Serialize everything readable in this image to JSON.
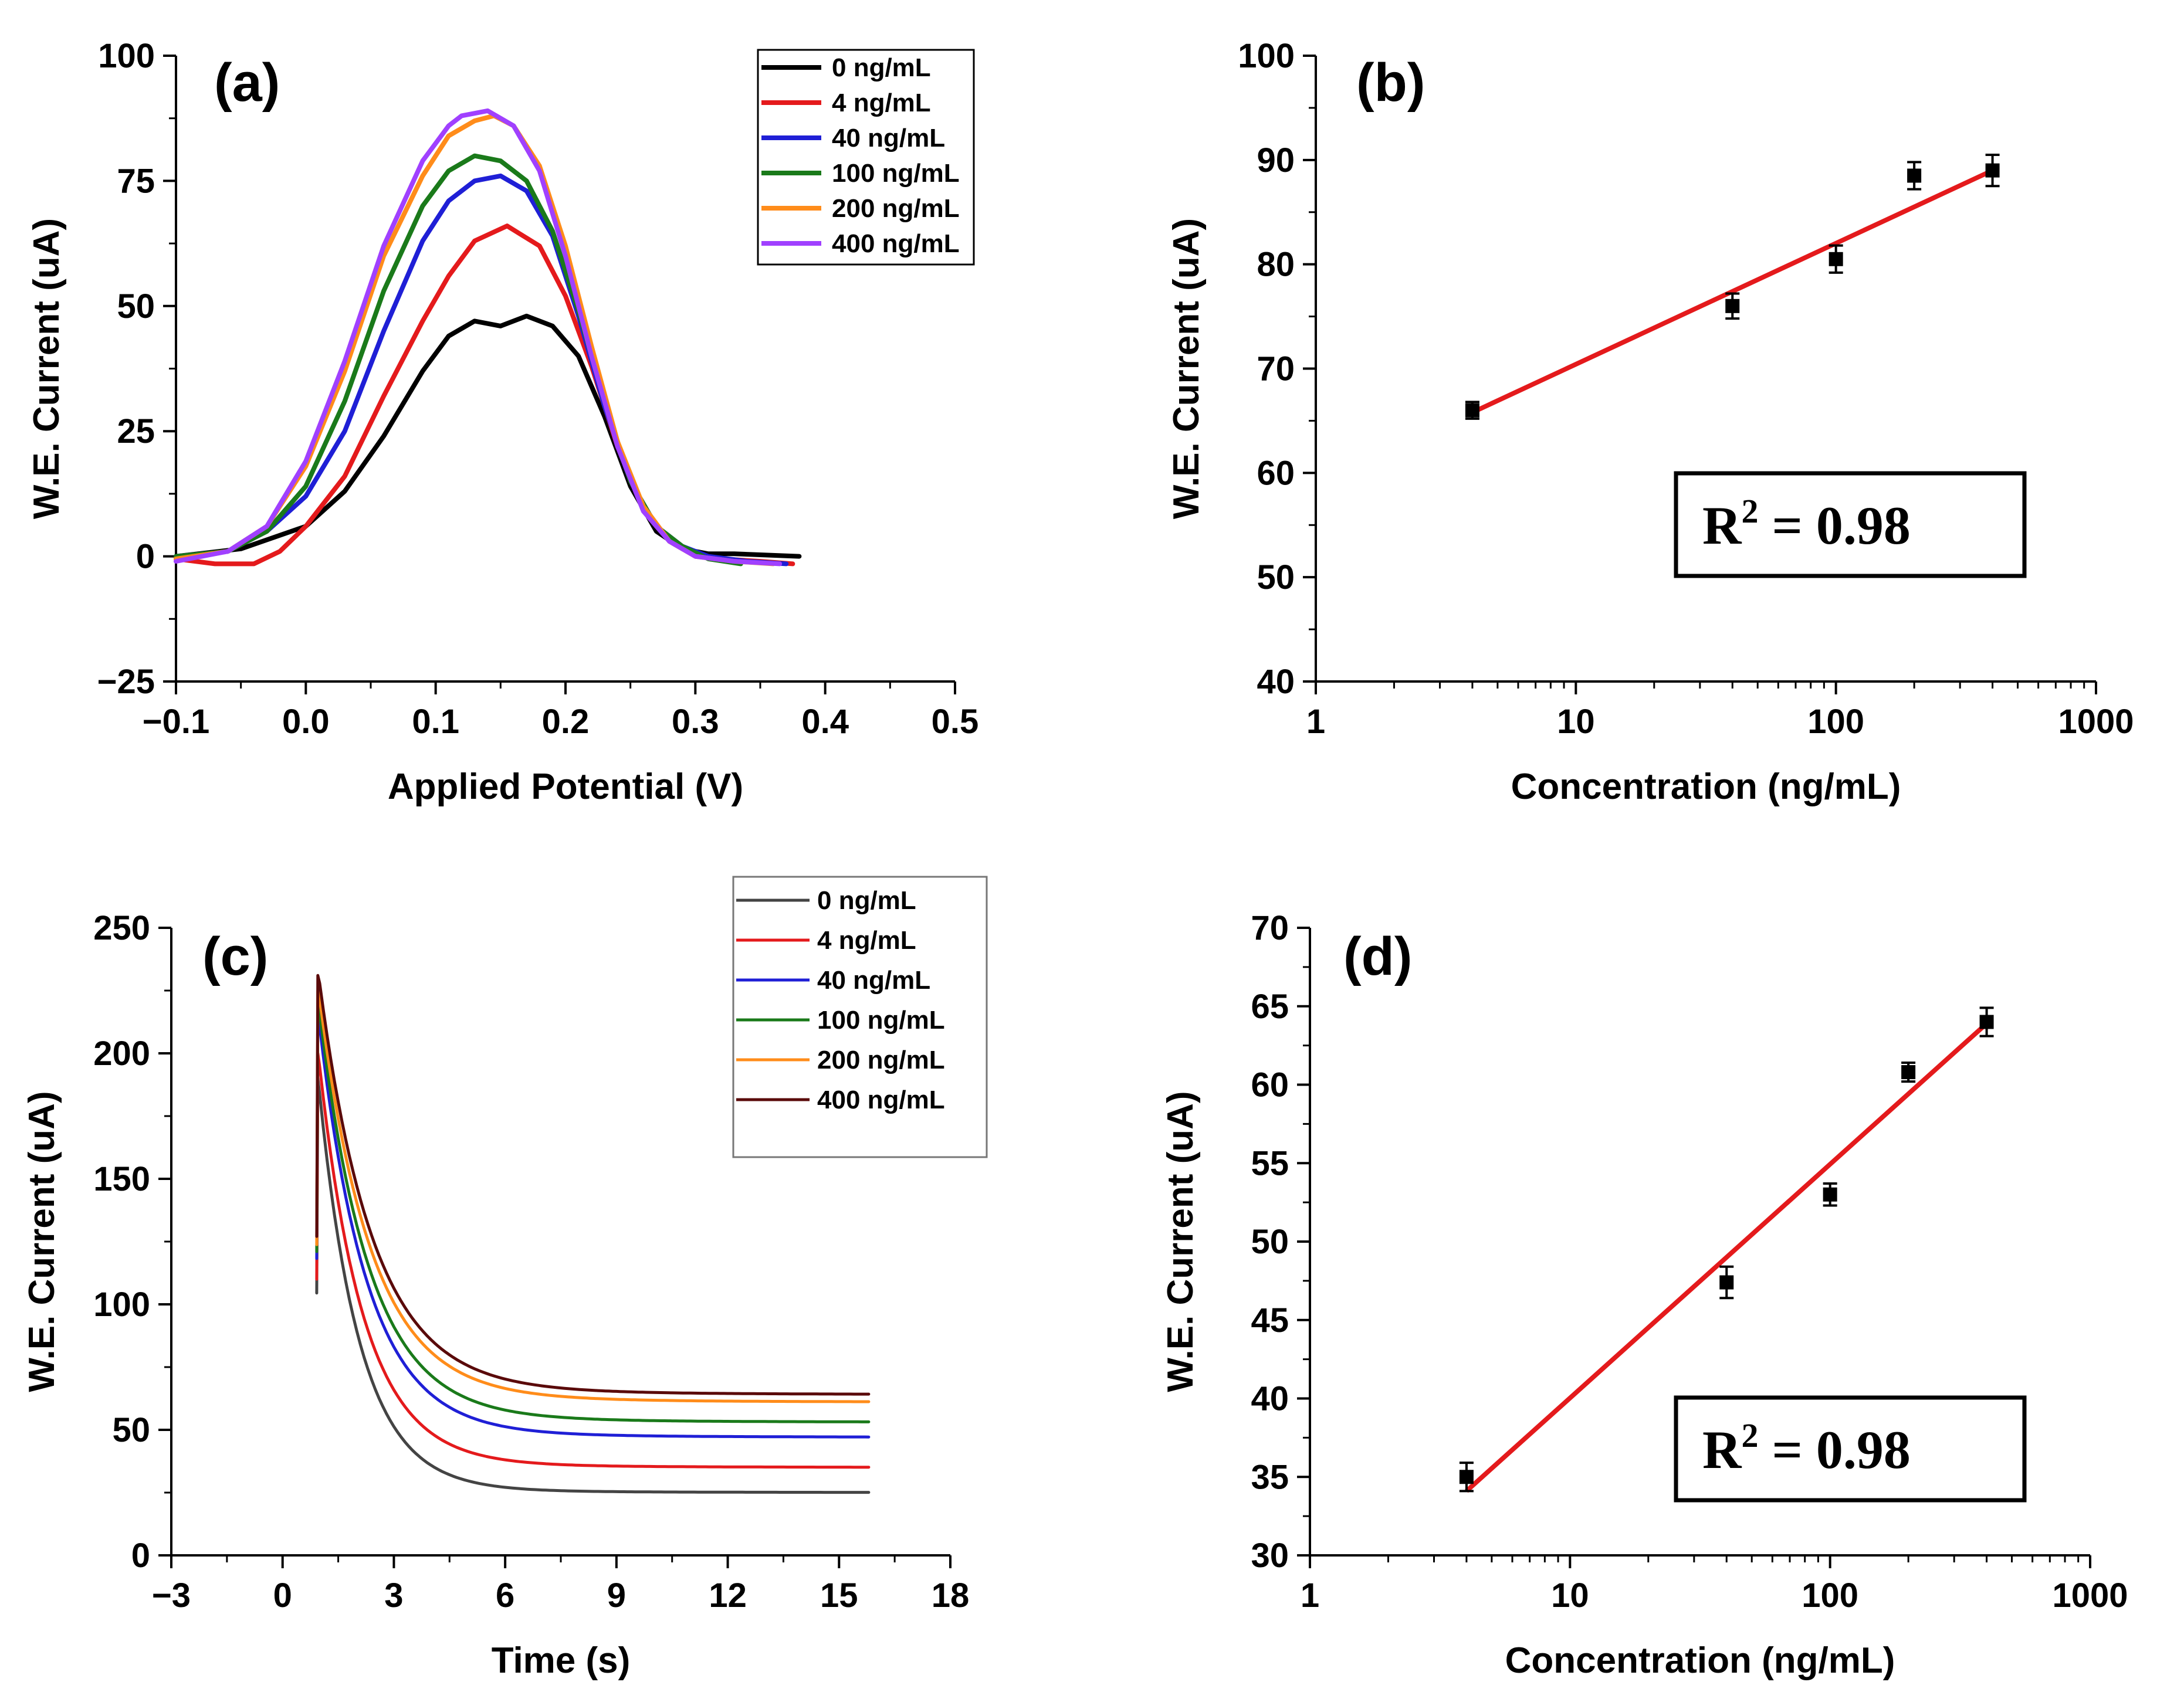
{
  "chart_data": [
    {
      "panel_label": "(a)",
      "type": "line",
      "title": "",
      "xlabel": "Applied Potential (V)",
      "ylabel": "W.E. Current (uA)",
      "xlim": [
        -0.1,
        0.5
      ],
      "ylim": [
        -25,
        100
      ],
      "xticks": [
        -0.1,
        0.0,
        0.1,
        0.2,
        0.3,
        0.4,
        0.5
      ],
      "xtick_labels": [
        "−0.1",
        "0.0",
        "0.1",
        "0.2",
        "0.3",
        "0.4",
        "0.5"
      ],
      "yticks": [
        -25,
        0,
        25,
        50,
        75,
        100
      ],
      "ytick_labels": [
        "−25",
        "0",
        "25",
        "50",
        "75",
        "100"
      ],
      "legend_position": "top-right",
      "series": [
        {
          "name": "0 ng/mL",
          "color": "#000000",
          "x": [
            -0.1,
            -0.05,
            0,
            0.03,
            0.06,
            0.09,
            0.11,
            0.13,
            0.15,
            0.17,
            0.19,
            0.21,
            0.23,
            0.25,
            0.27,
            0.29,
            0.31,
            0.33,
            0.35,
            0.38
          ],
          "y": [
            0,
            1.5,
            6,
            13,
            24,
            37,
            44,
            47,
            46,
            48,
            46,
            40,
            28,
            14,
            5,
            1.5,
            0.5,
            0.5,
            0.3,
            0
          ]
        },
        {
          "name": "4 ng/mL",
          "color": "#e41a1c",
          "x": [
            -0.1,
            -0.07,
            -0.04,
            -0.02,
            0,
            0.03,
            0.06,
            0.09,
            0.11,
            0.13,
            0.155,
            0.18,
            0.2,
            0.22,
            0.24,
            0.26,
            0.28,
            0.3,
            0.32,
            0.35,
            0.375
          ],
          "y": [
            -0.5,
            -1.5,
            -1.5,
            1,
            6,
            16,
            32,
            47,
            56,
            63,
            66,
            62,
            52,
            38,
            22,
            10,
            3,
            0,
            -0.5,
            -1,
            -1.5
          ]
        },
        {
          "name": "40 ng/mL",
          "color": "#1f1fd6",
          "x": [
            -0.1,
            -0.06,
            -0.03,
            0,
            0.03,
            0.06,
            0.09,
            0.11,
            0.13,
            0.15,
            0.17,
            0.19,
            0.21,
            0.23,
            0.25,
            0.27,
            0.29,
            0.31,
            0.34,
            0.37
          ],
          "y": [
            0,
            1,
            5,
            12,
            25,
            45,
            63,
            71,
            75,
            76,
            73,
            64,
            48,
            30,
            15,
            6,
            2,
            0,
            -1,
            -1.5
          ]
        },
        {
          "name": "100 ng/mL",
          "color": "#1a7a1a",
          "x": [
            -0.1,
            -0.06,
            -0.03,
            0,
            0.03,
            0.06,
            0.09,
            0.11,
            0.13,
            0.15,
            0.17,
            0.19,
            0.21,
            0.23,
            0.25,
            0.27,
            0.29,
            0.31,
            0.335
          ],
          "y": [
            0,
            1,
            5,
            14,
            31,
            53,
            70,
            77,
            80,
            79,
            75,
            65,
            49,
            31,
            15,
            6,
            2,
            -0.5,
            -1.5
          ]
        },
        {
          "name": "200 ng/mL",
          "color": "#ff8c1a",
          "x": [
            -0.1,
            -0.06,
            -0.03,
            0,
            0.03,
            0.06,
            0.09,
            0.11,
            0.13,
            0.145,
            0.16,
            0.18,
            0.2,
            0.22,
            0.24,
            0.26,
            0.28,
            0.3,
            0.33,
            0.36
          ],
          "y": [
            -0.5,
            1,
            6,
            18,
            37,
            60,
            76,
            84,
            87,
            88,
            86,
            78,
            62,
            42,
            23,
            10,
            3,
            0,
            -1,
            -1.5
          ]
        },
        {
          "name": "400 ng/mL",
          "color": "#a040ff",
          "x": [
            -0.1,
            -0.06,
            -0.03,
            0,
            0.03,
            0.06,
            0.09,
            0.11,
            0.12,
            0.14,
            0.16,
            0.18,
            0.2,
            0.22,
            0.24,
            0.26,
            0.28,
            0.3,
            0.33,
            0.365
          ],
          "y": [
            -1,
            1,
            6,
            19,
            39,
            62,
            79,
            86,
            88,
            89,
            86,
            77,
            60,
            40,
            22,
            9,
            3,
            0,
            -1,
            -1.5
          ]
        }
      ]
    },
    {
      "panel_label": "(b)",
      "type": "scatter",
      "title": "",
      "xlabel": "Concentration (ng/mL)",
      "ylabel": "W.E. Current (uA)",
      "xscale": "log",
      "xlim": [
        1,
        1000
      ],
      "ylim": [
        40,
        100
      ],
      "xticks": [
        1,
        10,
        100,
        1000
      ],
      "xtick_labels": [
        "1",
        "10",
        "100",
        "1000"
      ],
      "yticks": [
        40,
        50,
        60,
        70,
        80,
        90,
        100
      ],
      "ytick_labels": [
        "40",
        "50",
        "60",
        "70",
        "80",
        "90",
        "100"
      ],
      "points": {
        "x": [
          4,
          40,
          100,
          200,
          400
        ],
        "y": [
          66,
          76,
          80.5,
          88.5,
          89
        ],
        "err": [
          0.8,
          1.2,
          1.3,
          1.3,
          1.5
        ],
        "color": "#000000"
      },
      "fit": {
        "x": [
          4,
          400
        ],
        "y": [
          65.8,
          89
        ],
        "color": "#e41a1c"
      },
      "annotation": {
        "text": "R",
        "sup": "2",
        "rest": " = 0.98"
      }
    },
    {
      "panel_label": "(c)",
      "type": "line",
      "title": "",
      "xlabel": "Time (s)",
      "ylabel": "W.E. Current (uA)",
      "xlim": [
        -3,
        18
      ],
      "ylim": [
        0,
        250
      ],
      "xticks": [
        -3,
        0,
        3,
        6,
        9,
        12,
        15,
        18
      ],
      "xtick_labels": [
        "−3",
        "0",
        "3",
        "6",
        "9",
        "12",
        "15",
        "18"
      ],
      "yticks": [
        0,
        50,
        100,
        150,
        200,
        250
      ],
      "ytick_labels": [
        "0",
        "50",
        "100",
        "150",
        "200",
        "250"
      ],
      "legend_position": "top-right",
      "series": [
        {
          "name": "0 ng/mL",
          "color": "#444444",
          "peak": 190,
          "final": 25,
          "tau": 1.1
        },
        {
          "name": "4 ng/mL",
          "color": "#e41a1c",
          "peak": 200,
          "final": 35,
          "tau": 1.2
        },
        {
          "name": "40 ng/mL",
          "color": "#1f1fd6",
          "peak": 215,
          "final": 47,
          "tau": 1.3
        },
        {
          "name": "100 ng/mL",
          "color": "#1a7a1a",
          "peak": 220,
          "final": 53,
          "tau": 1.35
        },
        {
          "name": " 200 ng/mL",
          "color": "#ff8c1a",
          "peak": 225,
          "final": 61,
          "tau": 1.4
        },
        {
          "name": "400 ng/mL",
          "color": "#5a0a0a",
          "peak": 231,
          "final": 64,
          "tau": 1.45
        }
      ]
    },
    {
      "panel_label": "(d)",
      "type": "scatter",
      "title": "",
      "xlabel": "Concentration (ng/mL)",
      "ylabel": "W.E. Current (uA)",
      "xscale": "log",
      "xlim": [
        1,
        1000
      ],
      "ylim": [
        30,
        70
      ],
      "xticks": [
        1,
        10,
        100,
        1000
      ],
      "xtick_labels": [
        "1",
        "10",
        "100",
        "1000"
      ],
      "yticks": [
        30,
        35,
        40,
        45,
        50,
        55,
        60,
        65,
        70
      ],
      "ytick_labels": [
        "30",
        "35",
        "40",
        "45",
        "50",
        "55",
        "60",
        "65",
        "70"
      ],
      "points": {
        "x": [
          4,
          40,
          100,
          200,
          400
        ],
        "y": [
          35,
          47.4,
          53,
          60.8,
          64
        ],
        "err": [
          0.9,
          1.0,
          0.7,
          0.6,
          0.9
        ],
        "color": "#000000"
      },
      "fit": {
        "x": [
          4,
          400
        ],
        "y": [
          34.1,
          63.9
        ],
        "color": "#e41a1c"
      },
      "annotation": {
        "text": "R",
        "sup": "2",
        "rest": " = 0.98"
      }
    }
  ]
}
